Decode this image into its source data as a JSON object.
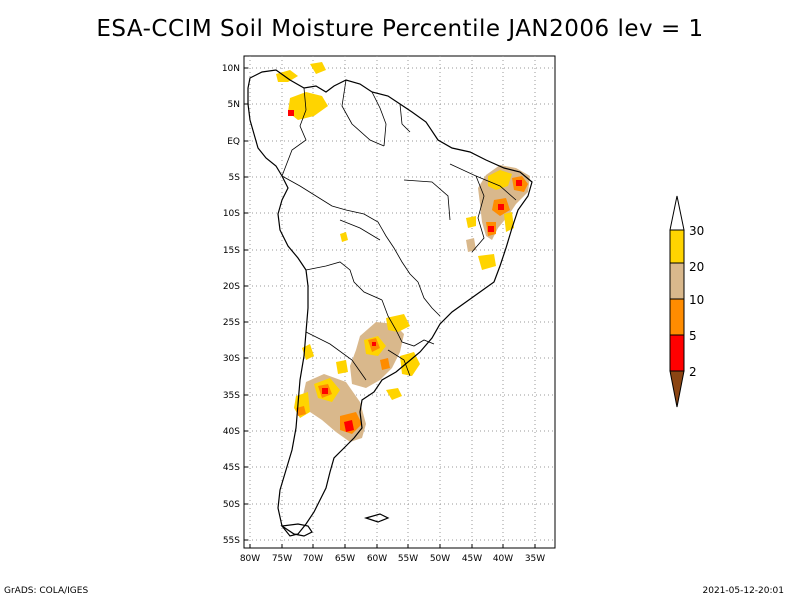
{
  "title": "ESA-CCIM Soil Moisture Percentile JAN2006 lev = 1",
  "footer": {
    "left": "GrADS: COLA/IGES",
    "right": "2021-05-12-20:01"
  },
  "map": {
    "lat_labels": [
      "10N",
      "5N",
      "EQ",
      "5S",
      "10S",
      "15S",
      "20S",
      "25S",
      "30S",
      "35S",
      "40S",
      "45S",
      "50S",
      "55S"
    ],
    "lon_labels": [
      "80W",
      "75W",
      "70W",
      "65W",
      "60W",
      "55W",
      "50W",
      "45W",
      "40W",
      "35W"
    ],
    "lat_range": [
      -56,
      11
    ],
    "lon_range": [
      -81,
      -32
    ],
    "grid": true
  },
  "colorbar": {
    "labels": [
      "30",
      "20",
      "10",
      "5",
      "2"
    ],
    "colors": [
      "#ffffff",
      "#ffd400",
      "#d9b88c",
      "#ff8c00",
      "#ff0000",
      "#8b4513"
    ]
  }
}
